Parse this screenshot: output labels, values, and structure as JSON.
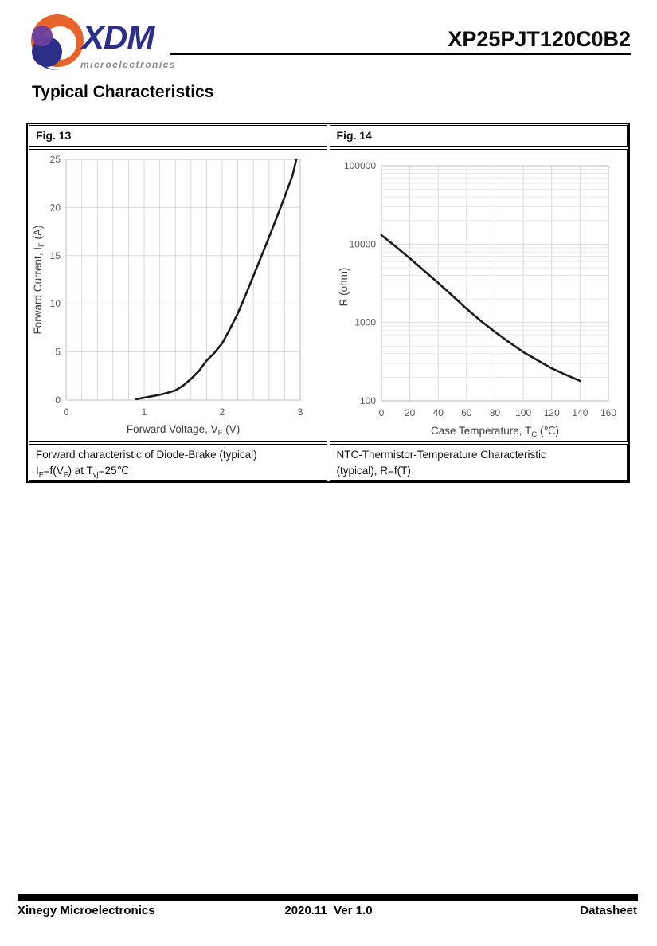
{
  "header": {
    "brand": "XDM",
    "brand_tagline": "microelectronics",
    "part_number": "XP25PJT120C0B2",
    "page_heading": "Typical Characteristics"
  },
  "colors": {
    "brand_navy": "#2B2F87",
    "brand_orange": "#E8632C",
    "brand_purple": "#6C3F9E",
    "grid": "#D9D9D9",
    "grid_minor": "#E7E7E7",
    "plot_border": "#C9C9C9",
    "tick_label": "#595959",
    "axis_title": "#3F3F3F",
    "curve": "#1A1A1A"
  },
  "figures": [
    {
      "label": "Fig. 13",
      "caption_line1": "Forward characteristic of Diode-Brake (typical)",
      "caption_line2_rich": [
        "I",
        {
          "sub": "F"
        },
        "=f(V",
        {
          "sub": "F"
        },
        ") at T",
        {
          "sub": "vj"
        },
        "=25℃"
      ]
    },
    {
      "label": "Fig. 14",
      "caption_line1": "NTC-Thermistor-Temperature Characteristic",
      "caption_line2_rich": [
        "(typical), R=f(T)"
      ]
    }
  ],
  "chart_data": [
    {
      "type": "line",
      "title": "",
      "yscale": "linear",
      "xlabel_rich": [
        "Forward Voltage, V",
        {
          "sub": "F"
        },
        " (V)"
      ],
      "ylabel_rich": [
        "Forward Current, I",
        {
          "sub": "F"
        },
        " (A)"
      ],
      "xlim": [
        0,
        3
      ],
      "ylim": [
        0,
        25
      ],
      "xticks": [
        0,
        1,
        2,
        3
      ],
      "yticks": [
        0,
        5,
        10,
        15,
        20,
        25
      ],
      "x_minor_step": 0.2,
      "grid": true,
      "points": [
        [
          0.9,
          0.1
        ],
        [
          1.0,
          0.25
        ],
        [
          1.1,
          0.4
        ],
        [
          1.2,
          0.55
        ],
        [
          1.3,
          0.75
        ],
        [
          1.4,
          1.0
        ],
        [
          1.5,
          1.5
        ],
        [
          1.6,
          2.2
        ],
        [
          1.7,
          3.0
        ],
        [
          1.8,
          4.1
        ],
        [
          1.9,
          4.9
        ],
        [
          2.0,
          5.9
        ],
        [
          2.1,
          7.4
        ],
        [
          2.2,
          9.0
        ],
        [
          2.3,
          10.9
        ],
        [
          2.4,
          12.9
        ],
        [
          2.5,
          14.9
        ],
        [
          2.6,
          16.9
        ],
        [
          2.7,
          19.0
        ],
        [
          2.8,
          21.1
        ],
        [
          2.9,
          23.3
        ],
        [
          2.95,
          25
        ]
      ]
    },
    {
      "type": "line",
      "title": "",
      "yscale": "log",
      "xlabel_rich": [
        "Case Temperature, T",
        {
          "sub": "C"
        },
        " (℃)"
      ],
      "ylabel_rich": [
        "R (ohm)"
      ],
      "xlim": [
        0,
        160
      ],
      "ylim": [
        100,
        100000
      ],
      "xticks": [
        0,
        20,
        40,
        60,
        80,
        100,
        120,
        140,
        160
      ],
      "yticks": [
        100,
        1000,
        10000,
        100000
      ],
      "grid": true,
      "points": [
        [
          0,
          13000
        ],
        [
          10,
          9300
        ],
        [
          20,
          6600
        ],
        [
          30,
          4600
        ],
        [
          40,
          3200
        ],
        [
          50,
          2200
        ],
        [
          60,
          1500
        ],
        [
          70,
          1050
        ],
        [
          80,
          760
        ],
        [
          90,
          560
        ],
        [
          100,
          420
        ],
        [
          110,
          330
        ],
        [
          120,
          260
        ],
        [
          130,
          215
        ],
        [
          140,
          180
        ]
      ]
    }
  ],
  "footer": {
    "company": "Xinegy Microelectronics",
    "version": "2020.11  Ver 1.0",
    "doc_type": "Datasheet"
  }
}
